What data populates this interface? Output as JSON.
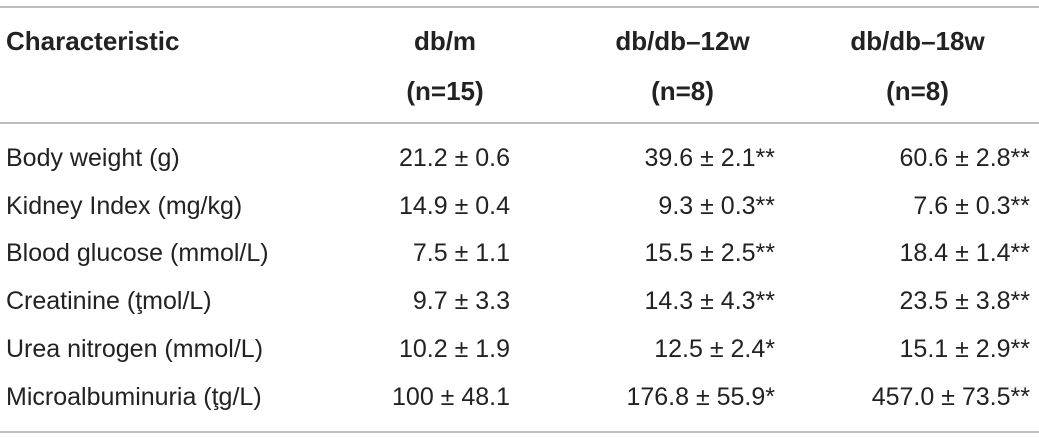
{
  "header": {
    "col0": "Characteristic",
    "col1": {
      "line1": "db/m",
      "line2": "(n=15)"
    },
    "col2": {
      "line1": "db/db–12w",
      "line2": "(n=8)"
    },
    "col3": {
      "line1": "db/db–18w",
      "line2": "(n=8)"
    }
  },
  "rows": [
    {
      "label": "Body weight (g)",
      "dbm": "21.2 ± 0.6",
      "db12": "39.6 ± 2.1**",
      "db18": "60.6 ± 2.8**"
    },
    {
      "label": "Kidney Index (mg/kg)",
      "dbm": "14.9 ± 0.4",
      "db12": "9.3 ± 0.3**",
      "db18": "7.6 ± 0.3**"
    },
    {
      "label": "Blood glucose (mmol/L)",
      "dbm": "7.5 ± 1.1",
      "db12": "15.5 ± 2.5**",
      "db18": "18.4 ± 1.4**"
    },
    {
      "label": "Creatinine (ţmol/L)",
      "dbm": "9.7 ± 3.3",
      "db12": "14.3 ± 4.3**",
      "db18": "23.5 ± 3.8**"
    },
    {
      "label": "Urea nitrogen (mmol/L)",
      "dbm": "10.2 ± 1.9",
      "db12": "12.5 ± 2.4*",
      "db18": "15.1 ± 2.9**"
    },
    {
      "label": "Microalbuminuria (ţg/L)",
      "dbm": "100 ± 48.1",
      "db12": "176.8 ± 55.9*",
      "db18": "457.0 ± 73.5**"
    }
  ]
}
